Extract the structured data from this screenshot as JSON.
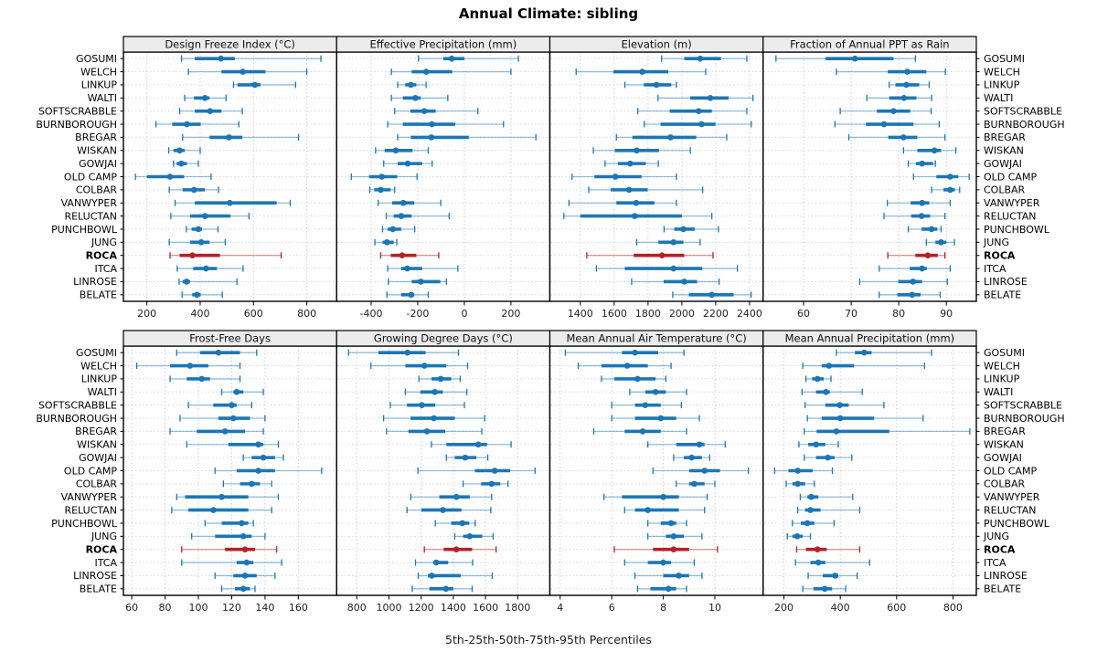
{
  "title": "Annual Climate: sibling",
  "caption": "5th-25th-50th-75th-95th Percentiles",
  "highlight_site": "ROCA",
  "colors": {
    "series": "#1d76b4",
    "highlight": "#b22327",
    "header_bg": "#ececec",
    "grid": "#cfcfcf",
    "row_guide": "#d9d9d9",
    "border": "#000000"
  },
  "chart_data": {
    "type": "dotplot-intervals",
    "percentiles": [
      5,
      25,
      50,
      75,
      95
    ],
    "sites": [
      "GOSUMI",
      "WELCH",
      "LINKUP",
      "WALTI",
      "SOFTSCRABBLE",
      "BURNBOROUGH",
      "BREGAR",
      "WISKAN",
      "GOWJAI",
      "OLD CAMP",
      "COLBAR",
      "VANWYPER",
      "RELUCTAN",
      "PUNCHBOWL",
      "JUNG",
      "ROCA",
      "ITCA",
      "LINROSE",
      "BELATE"
    ],
    "panels": [
      {
        "title": "Design Freeze Index (°C)",
        "ticks": [
          200,
          400,
          600,
          800
        ],
        "xlim": [
          112,
          912
        ],
        "values": [
          [
            330,
            380,
            478,
            530,
            853
          ],
          [
            356,
            480,
            560,
            645,
            800
          ],
          [
            525,
            540,
            605,
            626,
            758
          ],
          [
            342,
            377,
            418,
            435,
            497
          ],
          [
            323,
            380,
            437,
            480,
            558
          ],
          [
            234,
            295,
            350,
            402,
            545
          ],
          [
            334,
            435,
            508,
            558,
            769
          ],
          [
            282,
            300,
            323,
            342,
            400
          ],
          [
            300,
            312,
            329,
            350,
            393
          ],
          [
            157,
            200,
            287,
            340,
            441
          ],
          [
            284,
            334,
            377,
            418,
            469
          ],
          [
            306,
            380,
            511,
            687,
            738
          ],
          [
            290,
            362,
            418,
            514,
            583
          ],
          [
            348,
            368,
            393,
            407,
            467
          ],
          [
            284,
            362,
            404,
            435,
            494
          ],
          [
            287,
            323,
            371,
            474,
            704
          ],
          [
            314,
            374,
            422,
            463,
            561
          ],
          [
            321,
            334,
            349,
            362,
            538
          ],
          [
            332,
            370,
            388,
            402,
            483
          ]
        ]
      },
      {
        "title": "Effective Precipitation (mm)",
        "ticks": [
          -400,
          -200,
          0,
          200
        ],
        "xlim": [
          -548,
          367
        ],
        "values": [
          [
            -197,
            -90,
            -54,
            0,
            232
          ],
          [
            -313,
            -226,
            -164,
            -52,
            200
          ],
          [
            -286,
            -254,
            -230,
            -206,
            -164
          ],
          [
            -313,
            -264,
            -210,
            -187,
            -71
          ],
          [
            -299,
            -232,
            -172,
            -123,
            58
          ],
          [
            -329,
            -264,
            -139,
            -39,
            168
          ],
          [
            -286,
            -230,
            -142,
            19,
            307
          ],
          [
            -381,
            -342,
            -294,
            -222,
            -155
          ],
          [
            -346,
            -286,
            -243,
            -181,
            -138
          ],
          [
            -485,
            -409,
            -354,
            -288,
            -203
          ],
          [
            -406,
            -387,
            -359,
            -316,
            -299
          ],
          [
            -370,
            -310,
            -262,
            -215,
            -101
          ],
          [
            -335,
            -303,
            -271,
            -226,
            -65
          ],
          [
            -351,
            -329,
            -307,
            -271,
            -213
          ],
          [
            -384,
            -351,
            -332,
            -303,
            -290
          ],
          [
            -359,
            -316,
            -267,
            -206,
            -110
          ],
          [
            -329,
            -271,
            -245,
            -181,
            -28
          ],
          [
            -326,
            -226,
            -187,
            -103,
            -77
          ],
          [
            -332,
            -271,
            -228,
            -215,
            -155
          ]
        ]
      },
      {
        "title": "Elevation (m)",
        "ticks": [
          1400,
          1600,
          1800,
          2000,
          2200,
          2400
        ],
        "xlim": [
          1220,
          2480
        ],
        "values": [
          [
            1880,
            2014,
            2108,
            2231,
            2384
          ],
          [
            1375,
            1595,
            1766,
            1919,
            2141
          ],
          [
            1663,
            1775,
            1850,
            1937,
            1968
          ],
          [
            1859,
            2049,
            2168,
            2276,
            2420
          ],
          [
            1739,
            1928,
            2099,
            2177,
            2384
          ],
          [
            1778,
            1874,
            2117,
            2198,
            2410
          ],
          [
            1613,
            1708,
            1933,
            2085,
            2265
          ],
          [
            1477,
            1604,
            1733,
            1865,
            2050
          ],
          [
            1546,
            1622,
            1694,
            1787,
            1861
          ],
          [
            1351,
            1483,
            1607,
            1762,
            1968
          ],
          [
            1450,
            1580,
            1688,
            1798,
            2123
          ],
          [
            1333,
            1613,
            1730,
            1838,
            1968
          ],
          [
            1303,
            1400,
            1721,
            2000,
            2177
          ],
          [
            1895,
            1955,
            2009,
            2076,
            2216
          ],
          [
            1733,
            1861,
            1951,
            2009,
            2108
          ],
          [
            1438,
            1715,
            1883,
            2014,
            2184
          ],
          [
            1495,
            1663,
            1951,
            2121,
            2328
          ],
          [
            1703,
            1892,
            2014,
            2090,
            2220
          ],
          [
            1946,
            2041,
            2177,
            2306,
            2409
          ]
        ]
      },
      {
        "title": "Fraction of Annual PPT as Rain",
        "ticks": [
          60,
          70,
          80,
          90
        ],
        "xlim": [
          51.5,
          96.3
        ],
        "values": [
          [
            54.2,
            64.6,
            70.8,
            78.9,
            83.5
          ],
          [
            66.9,
            77.7,
            81.8,
            85.8,
            89.8
          ],
          [
            78.0,
            79.3,
            81.6,
            84.3,
            86.4
          ],
          [
            73.3,
            78.0,
            81.1,
            83.7,
            86.9
          ],
          [
            67.7,
            75.4,
            78.9,
            82.4,
            86.8
          ],
          [
            66.6,
            73.1,
            76.9,
            83.1,
            88.5
          ],
          [
            69.5,
            77.8,
            81.0,
            83.9,
            89.7
          ],
          [
            81.0,
            83.9,
            87.5,
            88.9,
            92.0
          ],
          [
            82.0,
            83.6,
            84.9,
            87.2,
            87.7
          ],
          [
            83.1,
            87.9,
            90.8,
            92.5,
            94.8
          ],
          [
            86.9,
            89.4,
            90.8,
            91.8,
            92.8
          ],
          [
            77.6,
            82.5,
            84.9,
            86.4,
            90.8
          ],
          [
            76.9,
            82.6,
            84.8,
            86.6,
            89.7
          ],
          [
            82.0,
            84.8,
            86.9,
            88.1,
            88.9
          ],
          [
            85.8,
            87.7,
            88.9,
            90.0,
            91.7
          ],
          [
            77.7,
            83.5,
            86.1,
            88.2,
            89.7
          ],
          [
            75.9,
            82.3,
            84.9,
            85.9,
            90.8
          ],
          [
            71.8,
            79.9,
            83.0,
            84.9,
            90.2
          ],
          [
            75.9,
            79.7,
            82.8,
            84.6,
            88.7
          ]
        ]
      },
      {
        "title": "Frost-Free Days",
        "ticks": [
          60,
          80,
          100,
          120,
          140,
          160
        ],
        "xlim": [
          55,
          183
        ],
        "values": [
          [
            87,
            101,
            112,
            125,
            135
          ],
          [
            63,
            83,
            95,
            106,
            125
          ],
          [
            83,
            93,
            102,
            107,
            125
          ],
          [
            114,
            121,
            123,
            127,
            139
          ],
          [
            94,
            109,
            120,
            123,
            132
          ],
          [
            89,
            112,
            121,
            131,
            140
          ],
          [
            83,
            99,
            116,
            128,
            139
          ],
          [
            93,
            118,
            136,
            139,
            148
          ],
          [
            127,
            132,
            139,
            146,
            151
          ],
          [
            110,
            123,
            136,
            146,
            174
          ],
          [
            115,
            125,
            132,
            137,
            144
          ],
          [
            87,
            92,
            114,
            130,
            148
          ],
          [
            84,
            94,
            109,
            130,
            144
          ],
          [
            104,
            114,
            126,
            130,
            133
          ],
          [
            96,
            110,
            127,
            132,
            140
          ],
          [
            90,
            116,
            128,
            134,
            147
          ],
          [
            90,
            123,
            129,
            133,
            150
          ],
          [
            110,
            121,
            128,
            135,
            146
          ],
          [
            114,
            122,
            127,
            131,
            134
          ]
        ]
      },
      {
        "title": "Growing Degree Days (°C)",
        "ticks": [
          800,
          1000,
          1200,
          1400,
          1600,
          1800
        ],
        "xlim": [
          675,
          2000
        ],
        "values": [
          [
            749,
            935,
            1115,
            1227,
            1432
          ],
          [
            888,
            1102,
            1220,
            1357,
            1489
          ],
          [
            1186,
            1264,
            1322,
            1387,
            1443
          ],
          [
            1102,
            1195,
            1285,
            1335,
            1484
          ],
          [
            1009,
            1112,
            1205,
            1288,
            1469
          ],
          [
            967,
            1134,
            1279,
            1409,
            1595
          ],
          [
            985,
            1121,
            1236,
            1350,
            1577
          ],
          [
            1264,
            1357,
            1555,
            1610,
            1759
          ],
          [
            1357,
            1409,
            1474,
            1543,
            1614
          ],
          [
            1180,
            1534,
            1657,
            1753,
            1908
          ],
          [
            1461,
            1573,
            1638,
            1692,
            1740
          ],
          [
            1136,
            1313,
            1419,
            1502,
            1638
          ],
          [
            1112,
            1201,
            1335,
            1450,
            1633
          ],
          [
            1288,
            1387,
            1456,
            1499,
            1536
          ],
          [
            1409,
            1461,
            1502,
            1580,
            1647
          ],
          [
            1220,
            1340,
            1419,
            1517,
            1666
          ],
          [
            1165,
            1276,
            1294,
            1368,
            1520
          ],
          [
            1182,
            1242,
            1266,
            1446,
            1642
          ],
          [
            1145,
            1251,
            1354,
            1400,
            1517
          ]
        ]
      },
      {
        "title": "Mean Annual Air Temperature (°C)",
        "ticks": [
          4,
          6,
          8,
          10
        ],
        "xlim": [
          3.6,
          11.87
        ],
        "values": [
          [
            4.2,
            6.4,
            6.9,
            7.8,
            8.8
          ],
          [
            4.7,
            5.6,
            6.6,
            7.4,
            8.3
          ],
          [
            5.6,
            6.1,
            7.0,
            7.7,
            8.1
          ],
          [
            6.7,
            7.3,
            7.7,
            8.1,
            8.9
          ],
          [
            6.0,
            6.9,
            7.3,
            7.9,
            8.7
          ],
          [
            6.0,
            6.9,
            7.9,
            8.5,
            9.4
          ],
          [
            5.3,
            6.5,
            7.2,
            7.9,
            8.9
          ],
          [
            7.4,
            8.5,
            9.4,
            9.6,
            10.4
          ],
          [
            8.4,
            8.8,
            9.1,
            9.5,
            9.8
          ],
          [
            7.6,
            9.0,
            9.6,
            10.2,
            11.3
          ],
          [
            8.5,
            9.0,
            9.2,
            9.6,
            10.0
          ],
          [
            5.7,
            6.4,
            8.0,
            8.6,
            9.7
          ],
          [
            6.5,
            6.9,
            7.4,
            8.6,
            9.6
          ],
          [
            7.4,
            7.9,
            8.3,
            8.5,
            8.9
          ],
          [
            7.4,
            8.1,
            8.4,
            8.8,
            9.5
          ],
          [
            6.1,
            7.6,
            8.4,
            9.0,
            10.1
          ],
          [
            6.5,
            7.4,
            8.0,
            8.3,
            9.2
          ],
          [
            6.9,
            8.0,
            8.6,
            9.0,
            9.5
          ],
          [
            7.0,
            7.5,
            8.2,
            8.5,
            8.9
          ]
        ]
      },
      {
        "title": "Mean Annual Precipitation (mm)",
        "ticks": [
          200,
          400,
          600,
          800
        ],
        "xlim": [
          126,
          883
        ],
        "values": [
          [
            386,
            452,
            485,
            511,
            724
          ],
          [
            267,
            334,
            360,
            449,
            699
          ],
          [
            278,
            300,
            319,
            341,
            367
          ],
          [
            264,
            314,
            349,
            363,
            478
          ],
          [
            275,
            347,
            398,
            430,
            555
          ],
          [
            283,
            334,
            400,
            520,
            694
          ],
          [
            272,
            316,
            386,
            574,
            860
          ],
          [
            253,
            286,
            314,
            347,
            393
          ],
          [
            272,
            314,
            356,
            380,
            441
          ],
          [
            167,
            216,
            249,
            302,
            372
          ],
          [
            208,
            230,
            249,
            275,
            308
          ],
          [
            258,
            283,
            297,
            322,
            444
          ],
          [
            249,
            275,
            294,
            330,
            469
          ],
          [
            230,
            260,
            283,
            308,
            378
          ],
          [
            212,
            230,
            247,
            267,
            294
          ],
          [
            245,
            278,
            319,
            352,
            469
          ],
          [
            241,
            294,
            322,
            347,
            504
          ],
          [
            286,
            338,
            382,
            393,
            460
          ],
          [
            267,
            305,
            345,
            371,
            419
          ]
        ]
      }
    ]
  }
}
